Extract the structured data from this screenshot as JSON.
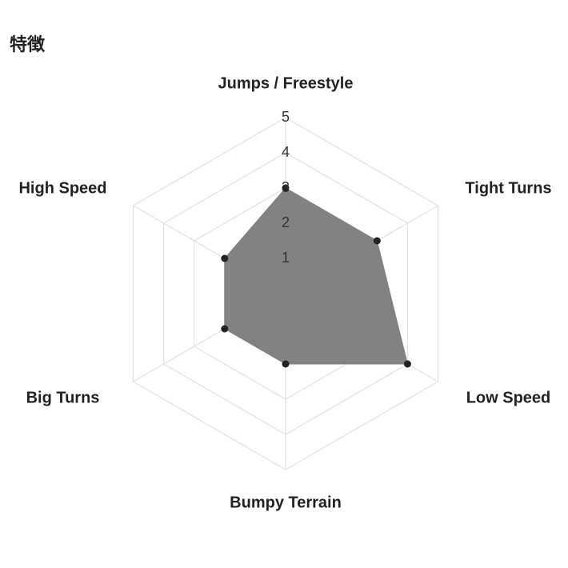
{
  "chart_data": {
    "type": "radar",
    "title": "特徴",
    "categories": [
      "Jumps / Freestyle",
      "Tight Turns",
      "Low Speed",
      "Bumpy Terrain",
      "Big Turns",
      "High Speed"
    ],
    "values": [
      3,
      3,
      4,
      2,
      2,
      2
    ],
    "color": "#808080",
    "rlim": [
      0,
      5
    ],
    "rticks": [
      1,
      2,
      3,
      4,
      5
    ],
    "grid": true
  }
}
